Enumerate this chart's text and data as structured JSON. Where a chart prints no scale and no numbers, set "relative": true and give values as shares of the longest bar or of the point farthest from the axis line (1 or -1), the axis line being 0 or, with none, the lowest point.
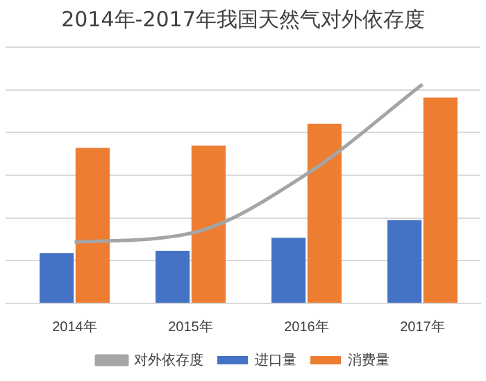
{
  "chart_data": {
    "type": "bar",
    "title": "2014年-2017年我国天然气对外依存度",
    "categories": [
      "2014年",
      "2015年",
      "2016年",
      "2017年"
    ],
    "relative": true,
    "grid": "y",
    "legend": "bottom",
    "series": [
      {
        "name": "进口量",
        "color": "#4472c4",
        "values": [
          0.23,
          0.24,
          0.3,
          0.38
        ]
      },
      {
        "name": "消费量",
        "color": "#ed7d31",
        "values": [
          0.71,
          0.72,
          0.82,
          0.94
        ]
      },
      {
        "name": "对外依存度",
        "type": "line",
        "color": "#a5a5a5",
        "values": [
          0.28,
          0.32,
          0.59,
          1
        ]
      }
    ]
  }
}
